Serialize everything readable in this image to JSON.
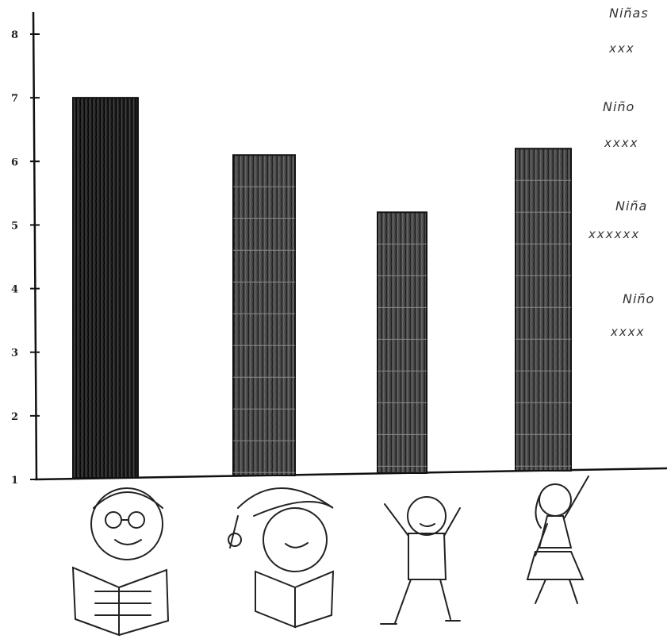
{
  "chart_data": {
    "type": "bar",
    "title": "",
    "xlabel": "",
    "ylabel": "",
    "ylim": [
      1,
      8
    ],
    "y_ticks": [
      1,
      2,
      3,
      4,
      5,
      6,
      7,
      8
    ],
    "y_tick_labels": [
      "1",
      "2",
      "3",
      "4",
      "5",
      "6",
      "7",
      "8"
    ],
    "categories": [
      "boy-reading-glasses",
      "girl-reading-hat",
      "boy-arms-up",
      "girl-arms-up"
    ],
    "values": [
      7,
      6.1,
      5.2,
      6.2
    ],
    "grid": false,
    "legend_position": "right",
    "legend": [
      {
        "label": "Niñas",
        "marks": "xxx"
      },
      {
        "label": "Niño",
        "marks": "xxxx"
      },
      {
        "label": "Niña",
        "marks": "xxxxxx"
      },
      {
        "label": "Niño",
        "marks": "xxxx"
      }
    ]
  },
  "colors": {
    "bar_fill": "#3a3a3a",
    "bar_outline": "#111111",
    "axis": "#111111"
  },
  "icons": [
    "boy-reading-glasses-icon",
    "girl-reading-hat-icon",
    "boy-arms-up-icon",
    "girl-arms-up-icon"
  ]
}
